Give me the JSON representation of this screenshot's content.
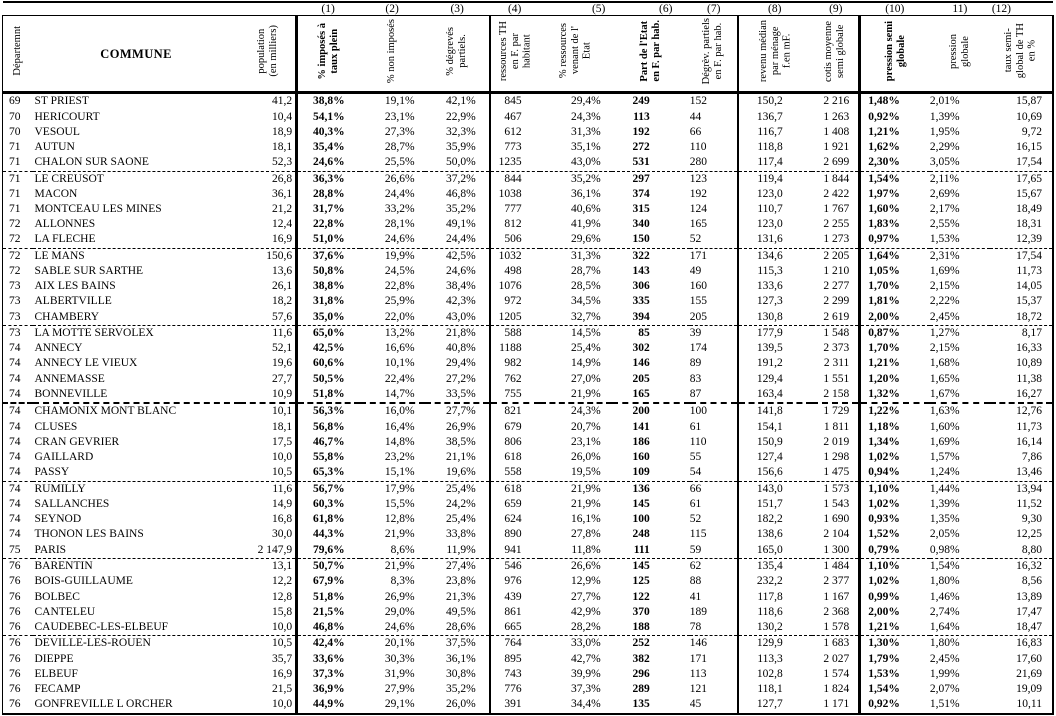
{
  "columns": [
    {
      "number": "",
      "label": "Départemnt"
    },
    {
      "number": "",
      "label": "COMMUNE"
    },
    {
      "number": "",
      "label": "population\n(en milliers)"
    },
    {
      "number": "(1)",
      "label": "% imposés à\ntaux plein"
    },
    {
      "number": "(2)",
      "label": "% non imposés"
    },
    {
      "number": "(3)",
      "label": "% dégrevés\npartiels."
    },
    {
      "number": "(4)",
      "label": "ressources TH\nen F. par\nhabitant"
    },
    {
      "number": "(5)",
      "label": "% ressources\nvenant de l'\nEtat"
    },
    {
      "number": "(6)",
      "label": "Part de l'Etat\nen F. par hab."
    },
    {
      "number": "(7)",
      "label": "Dégrèv. partiels\nen F. par hab."
    },
    {
      "number": "(8)",
      "label": "revenu médian\npar ménage\nf.en mF."
    },
    {
      "number": "(9)",
      "label": "cotis moyenne\nsemi globale"
    },
    {
      "number": "(10)",
      "label": "pression semi\nglobale"
    },
    {
      "number": "11)",
      "label": "pression\nglobale"
    },
    {
      "number": "(12)",
      "label": "taux semi-\nglobal de TH\nen %"
    }
  ],
  "rows": [
    [
      "69",
      "ST PRIEST",
      "41,2",
      "38,8%",
      "19,1%",
      "42,1%",
      "845",
      "29,4%",
      "249",
      "152",
      "150,2",
      "2 216",
      "1,48%",
      "2,01%",
      "15,87"
    ],
    [
      "70",
      "HERICOURT",
      "10,4",
      "54,1%",
      "23,1%",
      "22,9%",
      "467",
      "24,3%",
      "113",
      "44",
      "136,7",
      "1 263",
      "0,92%",
      "1,39%",
      "10,69"
    ],
    [
      "70",
      "VESOUL",
      "18,9",
      "40,3%",
      "27,3%",
      "32,3%",
      "612",
      "31,3%",
      "192",
      "66",
      "116,7",
      "1 408",
      "1,21%",
      "1,95%",
      "9,72"
    ],
    [
      "71",
      "AUTUN",
      "18,1",
      "35,4%",
      "28,7%",
      "35,9%",
      "773",
      "35,1%",
      "272",
      "110",
      "118,8",
      "1 921",
      "1,62%",
      "2,29%",
      "16,15"
    ],
    [
      "71",
      "CHALON SUR SAONE",
      "52,3",
      "24,6%",
      "25,5%",
      "50,0%",
      "1235",
      "43,0%",
      "531",
      "280",
      "117,4",
      "2 699",
      "2,30%",
      "3,05%",
      "17,54"
    ],
    [
      "71",
      "LE CREUSOT",
      "26,8",
      "36,3%",
      "26,6%",
      "37,2%",
      "844",
      "35,2%",
      "297",
      "123",
      "119,4",
      "1 844",
      "1,54%",
      "2,11%",
      "17,65"
    ],
    [
      "71",
      "MACON",
      "36,1",
      "28,8%",
      "24,4%",
      "46,8%",
      "1038",
      "36,1%",
      "374",
      "192",
      "123,0",
      "2 422",
      "1,97%",
      "2,69%",
      "15,67"
    ],
    [
      "71",
      "MONTCEAU LES MINES",
      "21,2",
      "31,7%",
      "33,2%",
      "35,2%",
      "777",
      "40,6%",
      "315",
      "124",
      "110,7",
      "1 767",
      "1,60%",
      "2,17%",
      "18,49"
    ],
    [
      "72",
      "ALLONNES",
      "12,4",
      "22,8%",
      "28,1%",
      "49,1%",
      "812",
      "41,9%",
      "340",
      "165",
      "123,0",
      "2 255",
      "1,83%",
      "2,55%",
      "18,31"
    ],
    [
      "72",
      "LA FLECHE",
      "16,9",
      "51,0%",
      "24,6%",
      "24,4%",
      "506",
      "29,6%",
      "150",
      "52",
      "131,6",
      "1 273",
      "0,97%",
      "1,53%",
      "12,39"
    ],
    [
      "72",
      "LE MANS",
      "150,6",
      "37,6%",
      "19,9%",
      "42,5%",
      "1032",
      "31,3%",
      "322",
      "171",
      "134,6",
      "2 205",
      "1,64%",
      "2,31%",
      "17,54"
    ],
    [
      "72",
      "SABLE SUR SARTHE",
      "13,6",
      "50,8%",
      "24,5%",
      "24,6%",
      "498",
      "28,7%",
      "143",
      "49",
      "115,3",
      "1 210",
      "1,05%",
      "1,69%",
      "11,73"
    ],
    [
      "73",
      "AIX LES BAINS",
      "26,1",
      "38,8%",
      "22,8%",
      "38,4%",
      "1076",
      "28,5%",
      "306",
      "160",
      "133,6",
      "2 277",
      "1,70%",
      "2,15%",
      "14,05"
    ],
    [
      "73",
      "ALBERTVILLE",
      "18,2",
      "31,8%",
      "25,9%",
      "42,3%",
      "972",
      "34,5%",
      "335",
      "155",
      "127,3",
      "2 299",
      "1,81%",
      "2,22%",
      "15,37"
    ],
    [
      "73",
      "CHAMBERY",
      "57,6",
      "35,0%",
      "22,0%",
      "43,0%",
      "1205",
      "32,7%",
      "394",
      "205",
      "130,8",
      "2 619",
      "2,00%",
      "2,45%",
      "18,72"
    ],
    [
      "73",
      "LA MOTTE SERVOLEX",
      "11,6",
      "65,0%",
      "13,2%",
      "21,8%",
      "588",
      "14,5%",
      "85",
      "39",
      "177,9",
      "1 548",
      "0,87%",
      "1,27%",
      "8,17"
    ],
    [
      "74",
      "ANNECY",
      "52,1",
      "42,5%",
      "16,6%",
      "40,8%",
      "1188",
      "25,4%",
      "302",
      "174",
      "139,5",
      "2 373",
      "1,70%",
      "2,15%",
      "16,33"
    ],
    [
      "74",
      "ANNECY LE VIEUX",
      "19,6",
      "60,6%",
      "10,1%",
      "29,4%",
      "982",
      "14,9%",
      "146",
      "89",
      "191,2",
      "2 311",
      "1,21%",
      "1,68%",
      "10,89"
    ],
    [
      "74",
      "ANNEMASSE",
      "27,7",
      "50,5%",
      "22,4%",
      "27,2%",
      "762",
      "27,0%",
      "205",
      "83",
      "129,4",
      "1 551",
      "1,20%",
      "1,65%",
      "11,38"
    ],
    [
      "74",
      "BONNEVILLE",
      "10,9",
      "51,8%",
      "14,7%",
      "33,5%",
      "755",
      "21,9%",
      "165",
      "87",
      "163,4",
      "2 158",
      "1,32%",
      "1,67%",
      "16,27"
    ],
    [
      "74",
      "CHAMONIX MONT BLANC",
      "10,1",
      "56,3%",
      "16,0%",
      "27,7%",
      "821",
      "24,3%",
      "200",
      "100",
      "141,8",
      "1 729",
      "1,22%",
      "1,63%",
      "12,76"
    ],
    [
      "74",
      "CLUSES",
      "18,1",
      "56,8%",
      "16,4%",
      "26,9%",
      "679",
      "20,7%",
      "141",
      "61",
      "154,1",
      "1 811",
      "1,18%",
      "1,60%",
      "11,73"
    ],
    [
      "74",
      "CRAN GEVRIER",
      "17,5",
      "46,7%",
      "14,8%",
      "38,5%",
      "806",
      "23,1%",
      "186",
      "110",
      "150,9",
      "2 019",
      "1,34%",
      "1,69%",
      "16,14"
    ],
    [
      "74",
      "GAILLARD",
      "10,0",
      "55,8%",
      "23,2%",
      "21,1%",
      "618",
      "26,0%",
      "160",
      "55",
      "127,4",
      "1 298",
      "1,02%",
      "1,57%",
      "7,86"
    ],
    [
      "74",
      "PASSY",
      "10,5",
      "65,3%",
      "15,1%",
      "19,6%",
      "558",
      "19,5%",
      "109",
      "54",
      "156,6",
      "1 475",
      "0,94%",
      "1,24%",
      "13,46"
    ],
    [
      "74",
      "RUMILLY",
      "11,6",
      "56,7%",
      "17,9%",
      "25,4%",
      "618",
      "21,9%",
      "136",
      "66",
      "143,0",
      "1 573",
      "1,10%",
      "1,44%",
      "13,94"
    ],
    [
      "74",
      "SALLANCHES",
      "14,9",
      "60,3%",
      "15,5%",
      "24,2%",
      "659",
      "21,9%",
      "145",
      "61",
      "151,7",
      "1 543",
      "1,02%",
      "1,39%",
      "11,52"
    ],
    [
      "74",
      "SEYNOD",
      "16,8",
      "61,8%",
      "12,8%",
      "25,4%",
      "624",
      "16,1%",
      "100",
      "52",
      "182,2",
      "1 690",
      "0,93%",
      "1,35%",
      "9,30"
    ],
    [
      "74",
      "THONON LES BAINS",
      "30,0",
      "44,3%",
      "21,9%",
      "33,8%",
      "890",
      "27,8%",
      "248",
      "115",
      "138,6",
      "2 104",
      "1,52%",
      "2,05%",
      "12,25"
    ],
    [
      "75",
      "PARIS",
      "2 147,9",
      "79,6%",
      "8,6%",
      "11,9%",
      "941",
      "11,8%",
      "111",
      "59",
      "165,0",
      "1 300",
      "0,79%",
      "0,98%",
      "8,80"
    ],
    [
      "76",
      "BARENTIN",
      "13,1",
      "50,7%",
      "21,9%",
      "27,4%",
      "546",
      "26,6%",
      "145",
      "62",
      "135,4",
      "1 484",
      "1,10%",
      "1,54%",
      "16,32"
    ],
    [
      "76",
      "BOIS-GUILLAUME",
      "12,2",
      "67,9%",
      "8,3%",
      "23,8%",
      "976",
      "12,9%",
      "125",
      "88",
      "232,2",
      "2 377",
      "1,02%",
      "1,80%",
      "8,56"
    ],
    [
      "76",
      "BOLBEC",
      "12,8",
      "51,8%",
      "26,9%",
      "21,3%",
      "439",
      "27,7%",
      "122",
      "41",
      "117,8",
      "1 167",
      "0,99%",
      "1,46%",
      "13,89"
    ],
    [
      "76",
      "CANTELEU",
      "15,8",
      "21,5%",
      "29,0%",
      "49,5%",
      "861",
      "42,9%",
      "370",
      "189",
      "118,6",
      "2 368",
      "2,00%",
      "2,74%",
      "17,47"
    ],
    [
      "76",
      "CAUDEBEC-LES-ELBEUF",
      "10,0",
      "46,8%",
      "24,6%",
      "28,6%",
      "665",
      "28,2%",
      "188",
      "78",
      "130,2",
      "1 578",
      "1,21%",
      "1,64%",
      "18,47"
    ],
    [
      "76",
      "DEVILLE-LES-ROUEN",
      "10,5",
      "42,4%",
      "20,1%",
      "37,5%",
      "764",
      "33,0%",
      "252",
      "146",
      "129,9",
      "1 683",
      "1,30%",
      "1,80%",
      "16,83"
    ],
    [
      "76",
      "DIEPPE",
      "35,7",
      "33,6%",
      "30,3%",
      "36,1%",
      "895",
      "42,7%",
      "382",
      "171",
      "113,3",
      "2 027",
      "1,79%",
      "2,45%",
      "17,60"
    ],
    [
      "76",
      "ELBEUF",
      "16,9",
      "37,3%",
      "31,9%",
      "30,8%",
      "743",
      "39,9%",
      "296",
      "113",
      "102,8",
      "1 574",
      "1,53%",
      "1,99%",
      "21,69"
    ],
    [
      "76",
      "FECAMP",
      "21,5",
      "36,9%",
      "27,9%",
      "35,2%",
      "776",
      "37,3%",
      "289",
      "121",
      "118,1",
      "1 824",
      "1,54%",
      "2,07%",
      "19,09"
    ],
    [
      "76",
      "GONFREVILLE L ORCHER",
      "10,0",
      "44,9%",
      "29,1%",
      "26,0%",
      "391",
      "34,4%",
      "135",
      "45",
      "127,7",
      "1 171",
      "0,92%",
      "1,51%",
      "10,11"
    ]
  ],
  "separators_after": [
    5,
    10,
    15,
    20,
    25,
    30,
    35
  ],
  "bold_separator_after": 20
}
